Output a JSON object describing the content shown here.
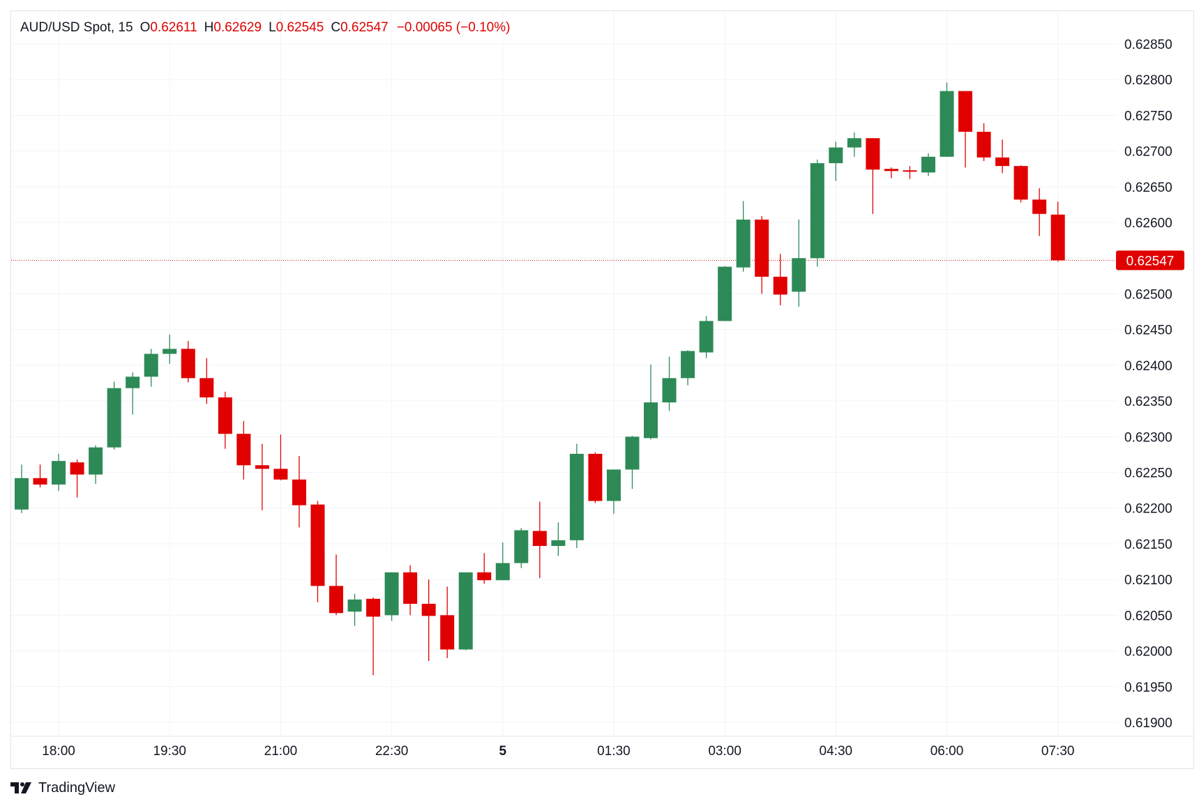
{
  "legend": {
    "symbol": "AUD/USD Spot, 15",
    "open_label": "O",
    "open": "0.62611",
    "high_label": "H",
    "high": "0.62629",
    "low_label": "L",
    "low": "0.62545",
    "close_label": "C",
    "close": "0.62547",
    "change": "−0.00065 (−0.10%)"
  },
  "brand": {
    "name": "TradingView",
    "icon": "tradingview-logo-icon"
  },
  "colors": {
    "up": "#2d8a57",
    "down": "#e00000",
    "grid": "#f0f3fa",
    "text": "#131722"
  },
  "chart_data": {
    "type": "candlestick",
    "interval_minutes": 15,
    "y_ticks": [
      "0.62850",
      "0.62800",
      "0.62750",
      "0.62700",
      "0.62650",
      "0.62600",
      "0.62550",
      "0.62500",
      "0.62450",
      "0.62400",
      "0.62350",
      "0.62300",
      "0.62250",
      "0.62200",
      "0.62150",
      "0.62100",
      "0.62050",
      "0.62000",
      "0.61950",
      "0.61900"
    ],
    "x_ticks": [
      {
        "label": "18:00",
        "bold": false
      },
      {
        "label": "19:30",
        "bold": false
      },
      {
        "label": "21:00",
        "bold": false
      },
      {
        "label": "22:30",
        "bold": false
      },
      {
        "label": "5",
        "bold": true
      },
      {
        "label": "01:30",
        "bold": false
      },
      {
        "label": "03:00",
        "bold": false
      },
      {
        "label": "04:30",
        "bold": false
      },
      {
        "label": "06:00",
        "bold": false
      },
      {
        "label": "07:30",
        "bold": false
      }
    ],
    "last_price": "0.62547",
    "grid": true,
    "candles": [
      {
        "o": 0.62198,
        "h": 0.62261,
        "l": 0.62193,
        "c": 0.62242
      },
      {
        "o": 0.62242,
        "h": 0.62261,
        "l": 0.62229,
        "c": 0.62233
      },
      {
        "o": 0.62233,
        "h": 0.62276,
        "l": 0.62224,
        "c": 0.62266
      },
      {
        "o": 0.62264,
        "h": 0.62268,
        "l": 0.62215,
        "c": 0.62247
      },
      {
        "o": 0.62247,
        "h": 0.62288,
        "l": 0.62234,
        "c": 0.62285
      },
      {
        "o": 0.62285,
        "h": 0.62377,
        "l": 0.62282,
        "c": 0.62368
      },
      {
        "o": 0.62368,
        "h": 0.6239,
        "l": 0.62331,
        "c": 0.62384
      },
      {
        "o": 0.62384,
        "h": 0.62423,
        "l": 0.6237,
        "c": 0.62416
      },
      {
        "o": 0.62416,
        "h": 0.62443,
        "l": 0.62402,
        "c": 0.62423
      },
      {
        "o": 0.62423,
        "h": 0.62434,
        "l": 0.62376,
        "c": 0.62382
      },
      {
        "o": 0.62382,
        "h": 0.6241,
        "l": 0.62346,
        "c": 0.62355
      },
      {
        "o": 0.62355,
        "h": 0.62363,
        "l": 0.62283,
        "c": 0.62304
      },
      {
        "o": 0.62304,
        "h": 0.62322,
        "l": 0.6224,
        "c": 0.6226
      },
      {
        "o": 0.6226,
        "h": 0.6229,
        "l": 0.62197,
        "c": 0.62255
      },
      {
        "o": 0.62255,
        "h": 0.62303,
        "l": 0.62239,
        "c": 0.6224
      },
      {
        "o": 0.6224,
        "h": 0.62273,
        "l": 0.62173,
        "c": 0.62204
      },
      {
        "o": 0.62205,
        "h": 0.6221,
        "l": 0.62068,
        "c": 0.62091
      },
      {
        "o": 0.62091,
        "h": 0.62135,
        "l": 0.6205,
        "c": 0.62053
      },
      {
        "o": 0.62055,
        "h": 0.6208,
        "l": 0.62035,
        "c": 0.62072
      },
      {
        "o": 0.62073,
        "h": 0.62075,
        "l": 0.61966,
        "c": 0.62048
      },
      {
        "o": 0.6205,
        "h": 0.6211,
        "l": 0.62042,
        "c": 0.6211
      },
      {
        "o": 0.6211,
        "h": 0.6212,
        "l": 0.6205,
        "c": 0.62066
      },
      {
        "o": 0.62066,
        "h": 0.621,
        "l": 0.61986,
        "c": 0.62049
      },
      {
        "o": 0.6205,
        "h": 0.6209,
        "l": 0.6199,
        "c": 0.62002
      },
      {
        "o": 0.62002,
        "h": 0.6211,
        "l": 0.62001,
        "c": 0.6211
      },
      {
        "o": 0.6211,
        "h": 0.62137,
        "l": 0.62094,
        "c": 0.62099
      },
      {
        "o": 0.62099,
        "h": 0.62152,
        "l": 0.62099,
        "c": 0.62123
      },
      {
        "o": 0.62123,
        "h": 0.62172,
        "l": 0.62116,
        "c": 0.62169
      },
      {
        "o": 0.62168,
        "h": 0.62209,
        "l": 0.62102,
        "c": 0.62147
      },
      {
        "o": 0.62147,
        "h": 0.6218,
        "l": 0.62133,
        "c": 0.62155
      },
      {
        "o": 0.62155,
        "h": 0.6229,
        "l": 0.62144,
        "c": 0.62276
      },
      {
        "o": 0.62276,
        "h": 0.62278,
        "l": 0.62207,
        "c": 0.6221
      },
      {
        "o": 0.6221,
        "h": 0.62254,
        "l": 0.62192,
        "c": 0.62254
      },
      {
        "o": 0.62254,
        "h": 0.62301,
        "l": 0.62227,
        "c": 0.623
      },
      {
        "o": 0.62298,
        "h": 0.62401,
        "l": 0.62296,
        "c": 0.62348
      },
      {
        "o": 0.62348,
        "h": 0.62412,
        "l": 0.62336,
        "c": 0.62382
      },
      {
        "o": 0.62382,
        "h": 0.62421,
        "l": 0.62372,
        "c": 0.6242
      },
      {
        "o": 0.62418,
        "h": 0.62469,
        "l": 0.6241,
        "c": 0.62462
      },
      {
        "o": 0.62462,
        "h": 0.62539,
        "l": 0.62462,
        "c": 0.62538
      },
      {
        "o": 0.62537,
        "h": 0.6263,
        "l": 0.62531,
        "c": 0.62604
      },
      {
        "o": 0.62604,
        "h": 0.62609,
        "l": 0.625,
        "c": 0.62524
      },
      {
        "o": 0.62524,
        "h": 0.62556,
        "l": 0.62484,
        "c": 0.62499
      },
      {
        "o": 0.62503,
        "h": 0.62604,
        "l": 0.62482,
        "c": 0.6255
      },
      {
        "o": 0.6255,
        "h": 0.62688,
        "l": 0.62538,
        "c": 0.62683
      },
      {
        "o": 0.62683,
        "h": 0.62713,
        "l": 0.62658,
        "c": 0.62705
      },
      {
        "o": 0.62705,
        "h": 0.62726,
        "l": 0.62692,
        "c": 0.62718
      },
      {
        "o": 0.62718,
        "h": 0.62718,
        "l": 0.62612,
        "c": 0.62674
      },
      {
        "o": 0.62675,
        "h": 0.62677,
        "l": 0.62662,
        "c": 0.62672
      },
      {
        "o": 0.62673,
        "h": 0.62679,
        "l": 0.62661,
        "c": 0.62672
      },
      {
        "o": 0.6267,
        "h": 0.62697,
        "l": 0.62665,
        "c": 0.62692
      },
      {
        "o": 0.62692,
        "h": 0.62796,
        "l": 0.62692,
        "c": 0.62784
      },
      {
        "o": 0.62784,
        "h": 0.62784,
        "l": 0.62677,
        "c": 0.62727
      },
      {
        "o": 0.62727,
        "h": 0.62739,
        "l": 0.62686,
        "c": 0.62691
      },
      {
        "o": 0.62691,
        "h": 0.62716,
        "l": 0.62669,
        "c": 0.62679
      },
      {
        "o": 0.62679,
        "h": 0.6268,
        "l": 0.62628,
        "c": 0.62632
      },
      {
        "o": 0.62632,
        "h": 0.62648,
        "l": 0.62581,
        "c": 0.62612
      },
      {
        "o": 0.62611,
        "h": 0.62629,
        "l": 0.62545,
        "c": 0.62547
      }
    ]
  }
}
